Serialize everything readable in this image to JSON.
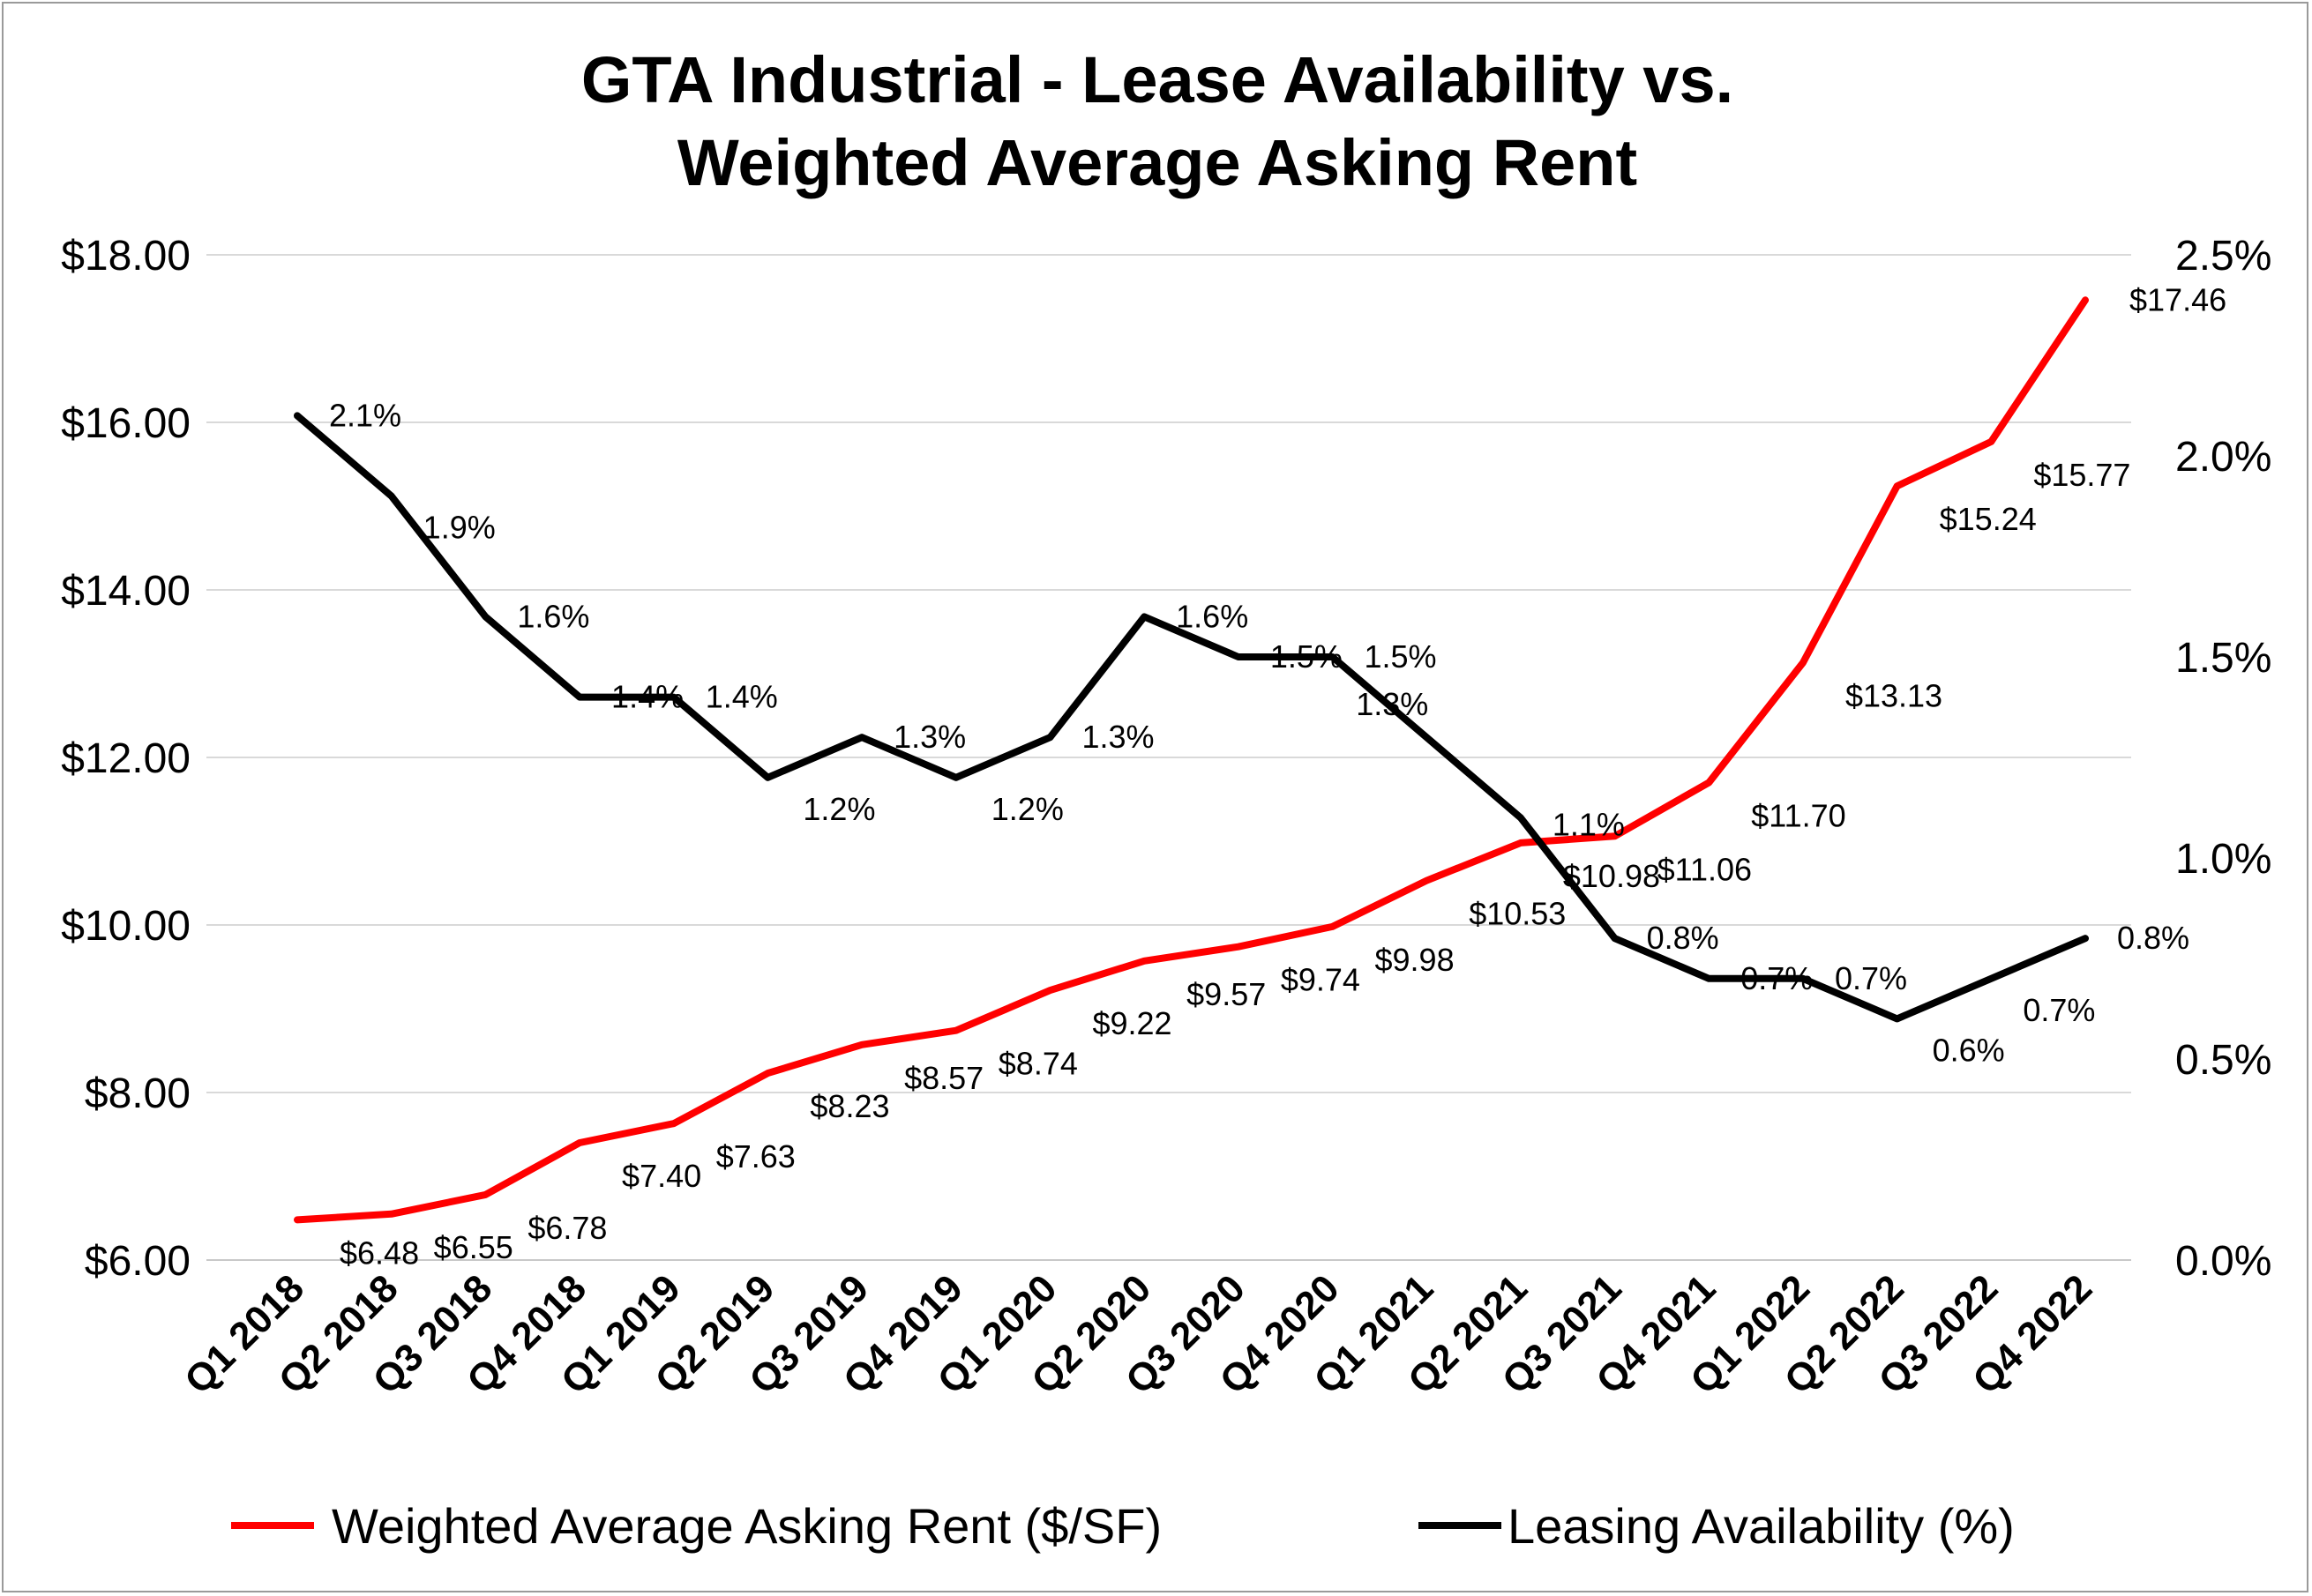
{
  "chart_data": {
    "type": "line",
    "title_lines": [
      "GTA Industrial - Lease Availability vs.",
      "Weighted Average Asking Rent"
    ],
    "categories": [
      "Q1 2018",
      "Q2 2018",
      "Q3 2018",
      "Q4 2018",
      "Q1 2019",
      "Q2 2019",
      "Q3 2019",
      "Q4 2019",
      "Q1 2020",
      "Q2 2020",
      "Q3 2020",
      "Q4 2020",
      "Q1 2021",
      "Q2 2021",
      "Q3 2021",
      "Q4 2021",
      "Q1 2022",
      "Q2 2022",
      "Q3 2022",
      "Q4 2022"
    ],
    "y_left": {
      "ticks": [
        "$6.00",
        "$8.00",
        "$10.00",
        "$12.00",
        "$14.00",
        "$16.00",
        "$18.00"
      ],
      "ylim": [
        6,
        18
      ]
    },
    "y_right": {
      "ticks": [
        "0.0%",
        "0.5%",
        "1.0%",
        "1.5%",
        "2.0%",
        "2.5%"
      ],
      "ylim": [
        0,
        2.5
      ]
    },
    "grid": true,
    "legend_position": "bottom",
    "series": [
      {
        "name": "Weighted Average Asking Rent ($/SF)",
        "axis": "left",
        "color": "#ff0000",
        "values": [
          6.48,
          6.55,
          6.78,
          7.4,
          7.63,
          8.23,
          8.57,
          8.74,
          9.22,
          9.57,
          9.74,
          9.98,
          10.53,
          10.98,
          11.06,
          11.7,
          13.13,
          15.24,
          15.77,
          17.46
        ],
        "labels": [
          "$6.48",
          "$6.55",
          "$6.78",
          "$7.40",
          "$7.63",
          "$8.23",
          "$8.57",
          "$8.74",
          "$9.22",
          "$9.57",
          "$9.74",
          "$9.98",
          "$10.53",
          "$10.98",
          "$11.06",
          "$11.70",
          "$13.13",
          "$15.24",
          "$15.77",
          "$17.46"
        ]
      },
      {
        "name": "Leasing Availability (%)",
        "axis": "right",
        "color": "#000000",
        "values": [
          2.1,
          1.9,
          1.6,
          1.4,
          1.4,
          1.2,
          1.3,
          1.2,
          1.3,
          1.6,
          1.5,
          1.5,
          1.3,
          1.1,
          0.8,
          0.7,
          0.7,
          0.6,
          0.7,
          0.8
        ],
        "labels": [
          "2.1%",
          "1.9%",
          "1.6%",
          "1.4%",
          "1.4%",
          "1.2%",
          "1.3%",
          "1.2%",
          "1.3%",
          "1.6%",
          "1.5%",
          "1.5%",
          "1.3%",
          "1.1%",
          "0.8%",
          "0.7%",
          "0.7%",
          "0.6%",
          "0.7%",
          "0.8%"
        ]
      }
    ]
  }
}
